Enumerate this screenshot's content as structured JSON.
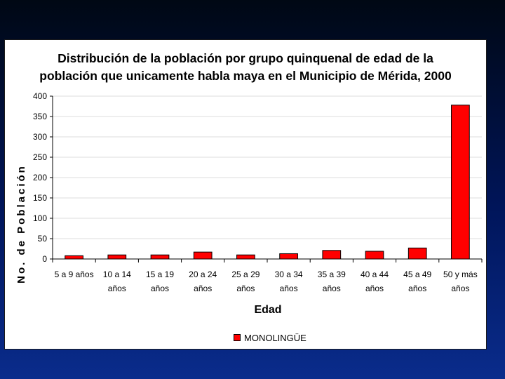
{
  "slide": {
    "background_color": "#00155a"
  },
  "chart_data": {
    "type": "bar",
    "title_lines": [
      "Distribución de la población por grupo quinquenal de edad de la",
      "población que unicamente habla maya en el Municipio de Mérida, 2000"
    ],
    "xlabel": "Edad",
    "ylabel": "No. de Población",
    "ylim": [
      0,
      400
    ],
    "yticks": [
      0,
      50,
      100,
      150,
      200,
      250,
      300,
      350,
      400
    ],
    "grid": true,
    "legend_position": "bottom",
    "categories": [
      [
        "5 a 9 años"
      ],
      [
        "10 a 14",
        "años"
      ],
      [
        "15 a 19",
        "años"
      ],
      [
        "20 a 24",
        "años"
      ],
      [
        "25 a 29",
        "años"
      ],
      [
        "30 a 34",
        "años"
      ],
      [
        "35 a 39",
        "años"
      ],
      [
        "40 a 44",
        "años"
      ],
      [
        "45 a 49",
        "años"
      ],
      [
        "50 y más",
        "años"
      ]
    ],
    "series": [
      {
        "name": "MONOLINGÜE",
        "color": "#ff0000",
        "values": [
          8,
          10,
          10,
          17,
          10,
          13,
          21,
          19,
          27,
          378
        ]
      }
    ]
  }
}
